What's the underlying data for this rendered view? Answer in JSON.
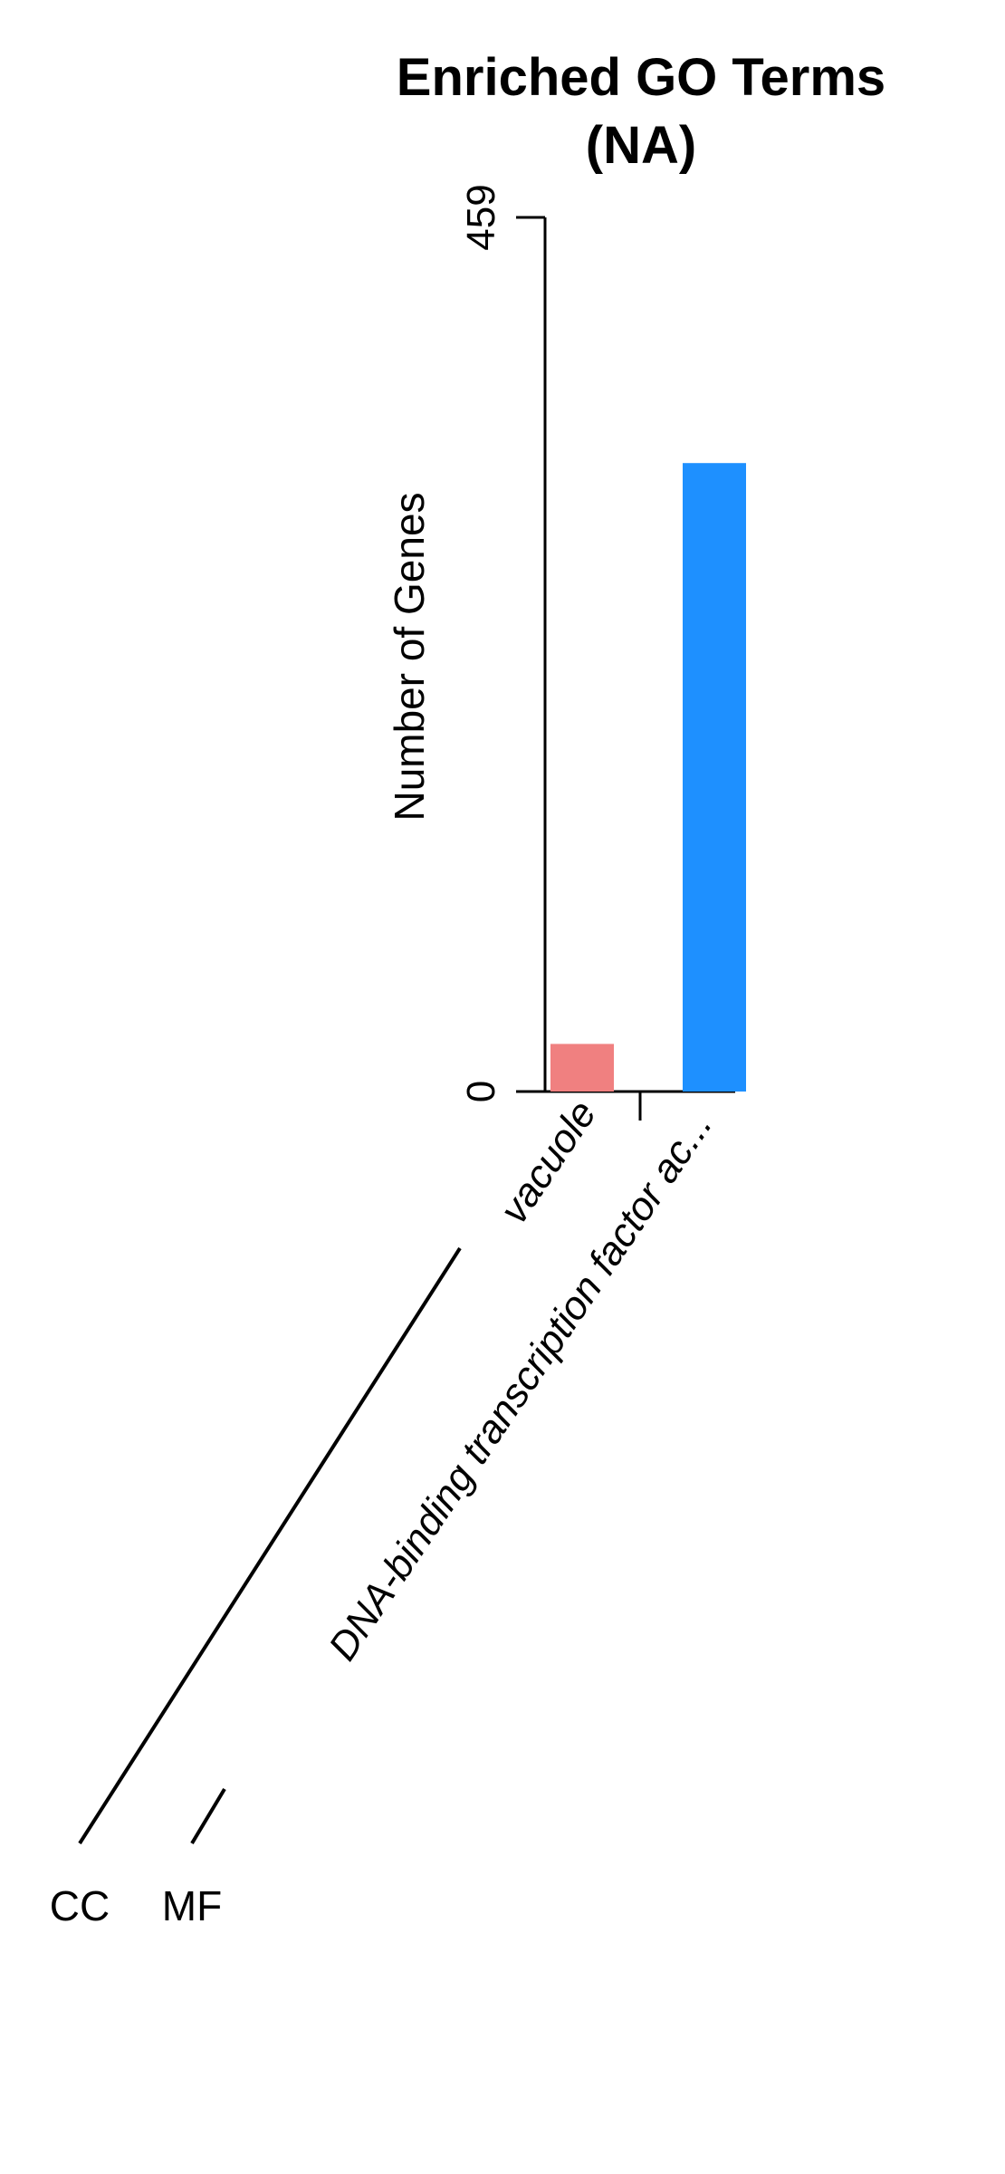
{
  "chart_data": {
    "type": "bar",
    "title_lines": [
      "Enriched GO Terms",
      "(NA)"
    ],
    "ylabel": "Number of Genes",
    "ylim": [
      0,
      459
    ],
    "y_ticks": [
      "0",
      "459"
    ],
    "categories": [
      "vacuole",
      "DNA-binding transcription factor ac..."
    ],
    "values": [
      25,
      330
    ],
    "bar_colors": [
      "#F08080",
      "#1E90FF"
    ],
    "groups": [
      {
        "name": "CC",
        "categories": [
          "vacuole"
        ]
      },
      {
        "name": "MF",
        "categories": [
          "DNA-binding transcription factor ac..."
        ]
      }
    ]
  }
}
